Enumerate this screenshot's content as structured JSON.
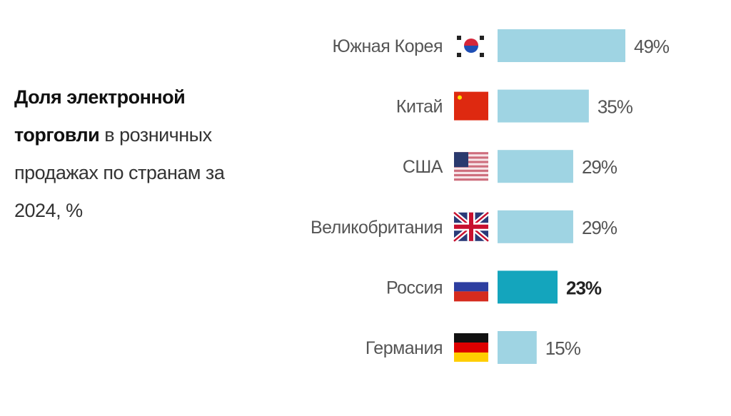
{
  "chart_data": {
    "type": "bar",
    "orientation": "horizontal",
    "title_bold": "Доля электронной торговли",
    "title_rest": " в розничных продажах по странам за 2024, %",
    "categories": [
      "Южная Корея",
      "Китай",
      "США",
      "Великобритания",
      "Россия",
      "Германия"
    ],
    "values": [
      49,
      35,
      29,
      29,
      23,
      15
    ],
    "value_labels": [
      "49%",
      "35%",
      "29%",
      "29%",
      "23%",
      "15%"
    ],
    "flags": [
      "south-korea-flag-icon",
      "china-flag-icon",
      "usa-flag-icon",
      "uk-flag-icon",
      "russia-flag-icon",
      "germany-flag-icon"
    ],
    "highlight": "Россия",
    "colors": {
      "bar": "#9fd4e3",
      "highlight_bar": "#14a5bd",
      "label": "#555555",
      "value": "#555555"
    },
    "xlim": [
      0,
      49
    ],
    "grid": false,
    "legend": "none"
  }
}
